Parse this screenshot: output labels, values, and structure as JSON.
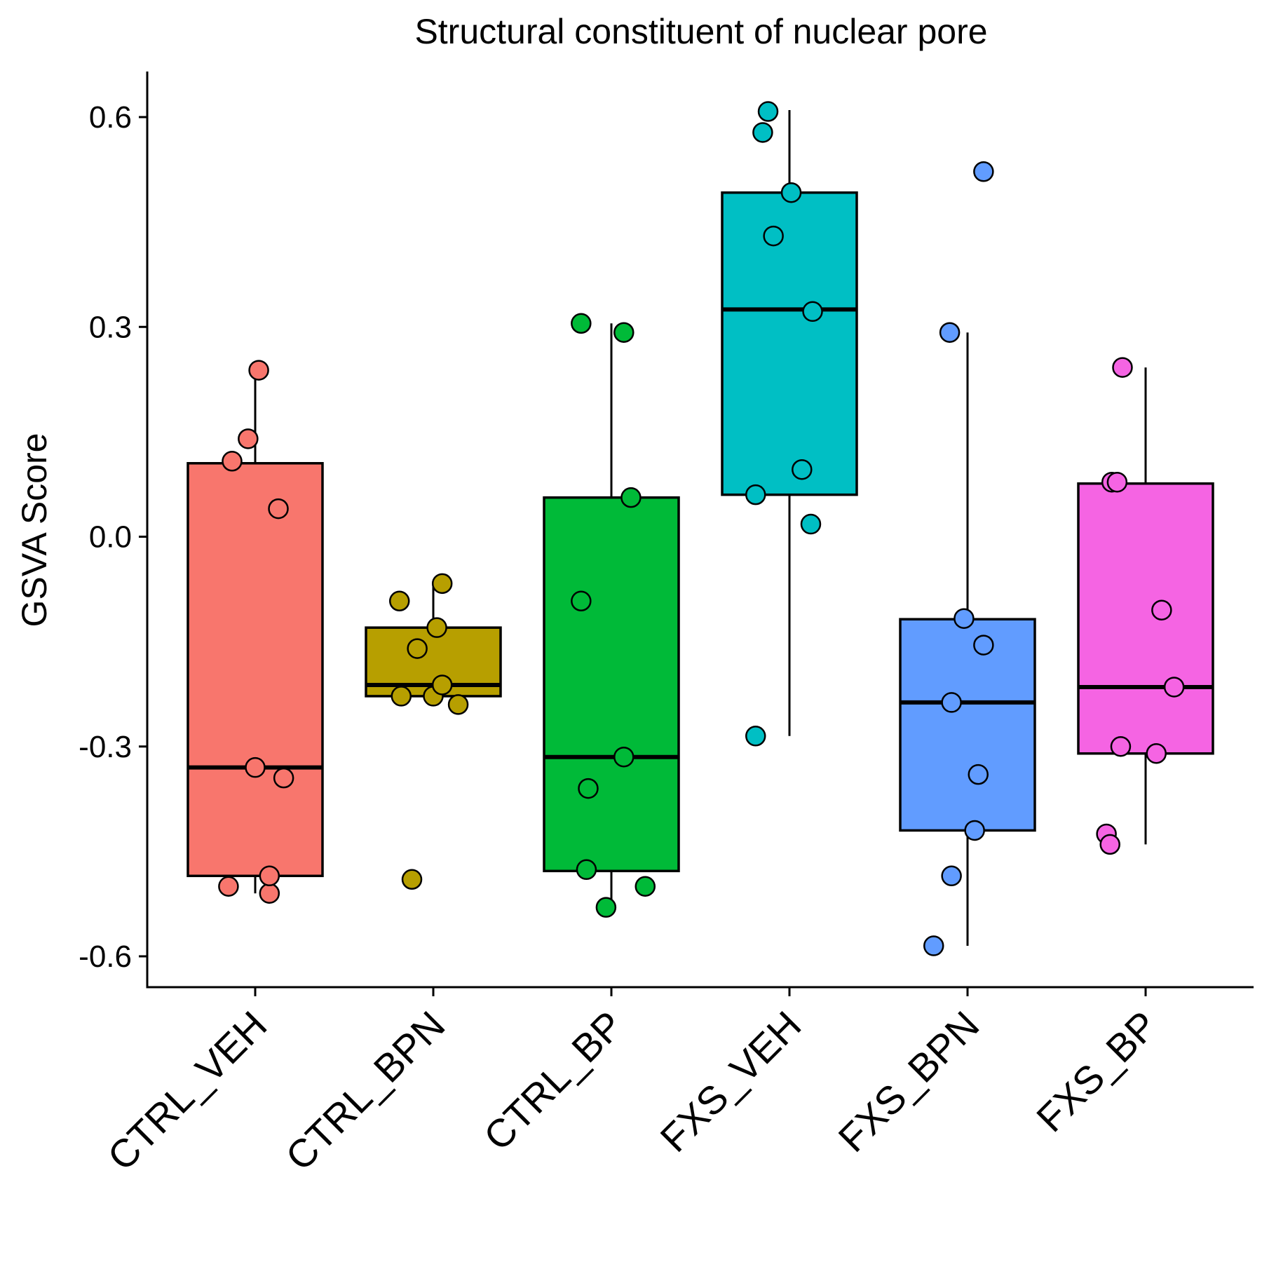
{
  "chart_data": {
    "type": "box",
    "title": "Structural constituent of nuclear pore",
    "xlabel": "",
    "ylabel": "GSVA Score",
    "ylim": [
      -0.65,
      0.67
    ],
    "yticks": [
      0.6,
      0.3,
      0.0,
      -0.3,
      -0.6
    ],
    "ytick_labels": [
      "0.6",
      "0.3",
      "0.0",
      "-0.3",
      "-0.6"
    ],
    "grid": false,
    "legend": "none",
    "categories": [
      "CTRL_VEH",
      "CTRL_BPN",
      "CTRL_BP",
      "FXS_VEH",
      "FXS_BPN",
      "FXS_BP"
    ],
    "colors": [
      "#F8766D",
      "#B79F00",
      "#00BA38",
      "#00BFC4",
      "#619CFF",
      "#F564E3"
    ],
    "boxes": [
      {
        "category": "CTRL_VEH",
        "whisker_low": -0.51,
        "q1": -0.485,
        "median": -0.33,
        "q3": 0.105,
        "whisker_high": 0.23
      },
      {
        "category": "CTRL_BPN",
        "whisker_low": -0.23,
        "q1": -0.228,
        "median": -0.212,
        "q3": -0.13,
        "whisker_high": -0.068
      },
      {
        "category": "CTRL_BP",
        "whisker_low": -0.535,
        "q1": -0.478,
        "median": -0.315,
        "q3": 0.056,
        "whisker_high": 0.305
      },
      {
        "category": "FXS_VEH",
        "whisker_low": -0.285,
        "q1": 0.06,
        "median": 0.325,
        "q3": 0.492,
        "whisker_high": 0.61
      },
      {
        "category": "FXS_BPN",
        "whisker_low": -0.585,
        "q1": -0.42,
        "median": -0.237,
        "q3": -0.118,
        "whisker_high": 0.292
      },
      {
        "category": "FXS_BP",
        "whisker_low": -0.44,
        "q1": -0.31,
        "median": -0.215,
        "q3": 0.076,
        "whisker_high": 0.242
      }
    ],
    "points": [
      [
        {
          "x": -0.15,
          "y": -0.5
        },
        {
          "x": 0.08,
          "y": -0.51
        },
        {
          "x": 0.08,
          "y": -0.485
        },
        {
          "x": 0.0,
          "y": -0.33
        },
        {
          "x": 0.16,
          "y": -0.345
        },
        {
          "x": 0.13,
          "y": 0.04
        },
        {
          "x": -0.13,
          "y": 0.108
        },
        {
          "x": -0.04,
          "y": 0.14
        },
        {
          "x": 0.02,
          "y": 0.238
        }
      ],
      [
        {
          "x": -0.12,
          "y": -0.49
        },
        {
          "x": -0.18,
          "y": -0.228
        },
        {
          "x": 0.0,
          "y": -0.228
        },
        {
          "x": 0.14,
          "y": -0.24
        },
        {
          "x": 0.05,
          "y": -0.212
        },
        {
          "x": -0.09,
          "y": -0.16
        },
        {
          "x": 0.02,
          "y": -0.13
        },
        {
          "x": -0.19,
          "y": -0.092
        },
        {
          "x": 0.05,
          "y": -0.067
        }
      ],
      [
        {
          "x": -0.03,
          "y": -0.53
        },
        {
          "x": 0.19,
          "y": -0.5
        },
        {
          "x": -0.14,
          "y": -0.476
        },
        {
          "x": -0.13,
          "y": -0.36
        },
        {
          "x": 0.07,
          "y": -0.315
        },
        {
          "x": -0.17,
          "y": -0.092
        },
        {
          "x": 0.11,
          "y": 0.056
        },
        {
          "x": 0.07,
          "y": 0.292
        },
        {
          "x": -0.17,
          "y": 0.305
        }
      ],
      [
        {
          "x": -0.19,
          "y": -0.285
        },
        {
          "x": 0.12,
          "y": 0.018
        },
        {
          "x": -0.19,
          "y": 0.06
        },
        {
          "x": 0.07,
          "y": 0.096
        },
        {
          "x": 0.13,
          "y": 0.322
        },
        {
          "x": -0.09,
          "y": 0.43
        },
        {
          "x": 0.01,
          "y": 0.492
        },
        {
          "x": -0.15,
          "y": 0.578
        },
        {
          "x": -0.12,
          "y": 0.608
        }
      ],
      [
        {
          "x": -0.19,
          "y": -0.585
        },
        {
          "x": -0.09,
          "y": -0.485
        },
        {
          "x": 0.04,
          "y": -0.42
        },
        {
          "x": 0.06,
          "y": -0.34
        },
        {
          "x": -0.09,
          "y": -0.237
        },
        {
          "x": 0.09,
          "y": -0.155
        },
        {
          "x": -0.02,
          "y": -0.117
        },
        {
          "x": -0.1,
          "y": 0.292
        },
        {
          "x": 0.09,
          "y": 0.522
        }
      ],
      [
        {
          "x": -0.22,
          "y": -0.425
        },
        {
          "x": -0.2,
          "y": -0.44
        },
        {
          "x": -0.14,
          "y": -0.3
        },
        {
          "x": 0.06,
          "y": -0.31
        },
        {
          "x": 0.16,
          "y": -0.215
        },
        {
          "x": 0.09,
          "y": -0.105
        },
        {
          "x": -0.19,
          "y": 0.078
        },
        {
          "x": -0.16,
          "y": 0.078
        },
        {
          "x": -0.13,
          "y": 0.242
        }
      ]
    ]
  }
}
